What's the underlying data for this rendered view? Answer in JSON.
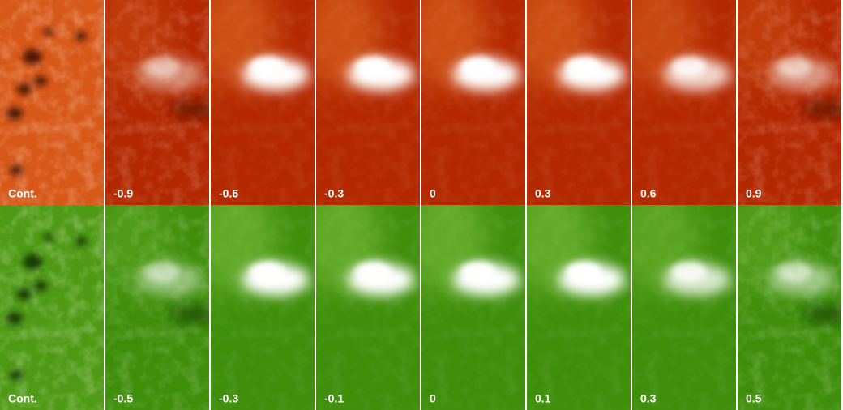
{
  "rows": [
    {
      "labels": [
        "Cont.",
        "-0.9",
        "-0.6",
        "-0.3",
        "0",
        "0.3",
        "0.6",
        "0.9"
      ]
    },
    {
      "labels": [
        "Cont.",
        "-0.5",
        "-0.3",
        "-0.1",
        "0",
        "0.1",
        "0.3",
        "0.5"
      ]
    }
  ]
}
